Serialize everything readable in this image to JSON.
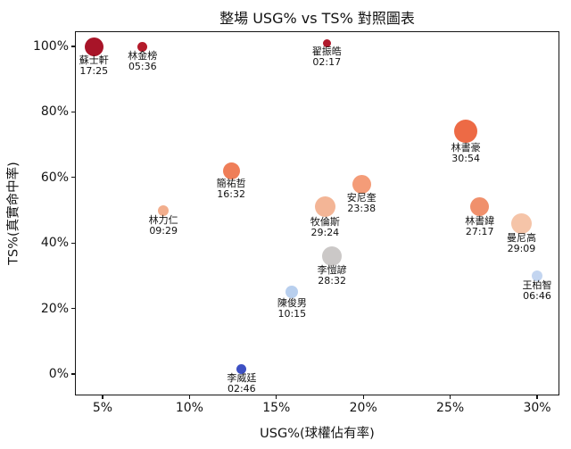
{
  "title": "整場 USG% vs TS% 對照圖表",
  "chart_data": {
    "type": "scatter",
    "title": "整場 USG% vs TS% 對照圖表",
    "xlabel": "USG%(球權佔有率)",
    "ylabel": "TS%(真實命中率)",
    "xlim": [
      3.4,
      31.3
    ],
    "ylim": [
      -6.5,
      104.6
    ],
    "grid": false,
    "legend": "none",
    "x_ticks": [
      {
        "value": 5,
        "label": "5%"
      },
      {
        "value": 10,
        "label": "10%"
      },
      {
        "value": 15,
        "label": "15%"
      },
      {
        "value": 20,
        "label": "20%"
      },
      {
        "value": 25,
        "label": "25%"
      },
      {
        "value": 30,
        "label": "30%"
      }
    ],
    "y_ticks": [
      {
        "value": 0,
        "label": "0%"
      },
      {
        "value": 20,
        "label": "20%"
      },
      {
        "value": 40,
        "label": "40%"
      },
      {
        "value": 60,
        "label": "60%"
      },
      {
        "value": 80,
        "label": "80%"
      },
      {
        "value": 100,
        "label": "100%"
      }
    ],
    "encoding_notes": {
      "x": "USG% usage rate",
      "y": "TS% true shooting",
      "bubble_size": "minutes played",
      "bubble_color": "coolwarm scale, red = high TS%, blue = low TS%"
    },
    "points": [
      {
        "name": "蘇士軒",
        "minutes": "17:25",
        "usg": 4.5,
        "ts": 100,
        "r": 10.5,
        "color": "#a81428"
      },
      {
        "name": "林金榜",
        "minutes": "05:36",
        "usg": 7.3,
        "ts": 100,
        "r": 5.5,
        "color": "#b41b2b"
      },
      {
        "name": "翟振皓",
        "minutes": "02:17",
        "usg": 17.9,
        "ts": 101,
        "r": 4.5,
        "color": "#b01a2d"
      },
      {
        "name": "林書豪",
        "minutes": "30:54",
        "usg": 25.9,
        "ts": 74,
        "r": 13,
        "color": "#ed6a45"
      },
      {
        "name": "簡祐哲",
        "minutes": "16:32",
        "usg": 12.4,
        "ts": 62,
        "r": 9.5,
        "color": "#ef7e58"
      },
      {
        "name": "安尼奎",
        "minutes": "23:38",
        "usg": 19.9,
        "ts": 58,
        "r": 10.5,
        "color": "#f49c78"
      },
      {
        "name": "牧倫斯",
        "minutes": "29:24",
        "usg": 17.8,
        "ts": 51,
        "r": 11.5,
        "color": "#f3b596"
      },
      {
        "name": "林力仁",
        "minutes": "09:29",
        "usg": 8.5,
        "ts": 50,
        "r": 6,
        "color": "#f2ae8d"
      },
      {
        "name": "林書緯",
        "minutes": "27:17",
        "usg": 26.7,
        "ts": 51,
        "r": 10.5,
        "color": "#f0906c"
      },
      {
        "name": "曼尼高",
        "minutes": "29:09",
        "usg": 29.1,
        "ts": 46,
        "r": 11.5,
        "color": "#f5c4a8"
      },
      {
        "name": "李愷諺",
        "minutes": "28:32",
        "usg": 18.2,
        "ts": 36,
        "r": 11,
        "color": "#cbc8c7"
      },
      {
        "name": "陳俊男",
        "minutes": "10:15",
        "usg": 15.9,
        "ts": 25,
        "r": 7,
        "color": "#b8cfee"
      },
      {
        "name": "王柏智",
        "minutes": "06:46",
        "usg": 30.0,
        "ts": 30,
        "r": 6,
        "color": "#c3d5f0"
      },
      {
        "name": "李威廷",
        "minutes": "02:46",
        "usg": 13.0,
        "ts": 1.5,
        "r": 5.5,
        "color": "#3d50c3"
      }
    ]
  }
}
